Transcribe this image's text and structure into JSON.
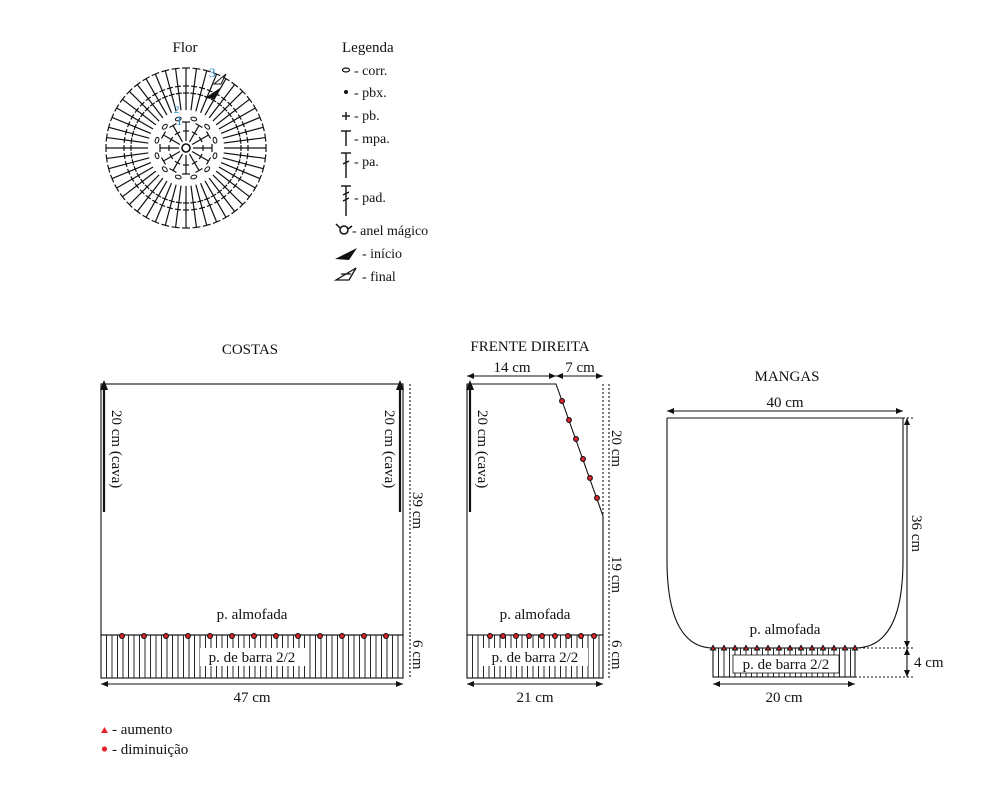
{
  "flower": {
    "title": "Flor",
    "round_labels": [
      "1",
      "2",
      "3"
    ]
  },
  "legend": {
    "title": "Legenda",
    "items": [
      {
        "icon": "chain-stitch-icon",
        "label": "- corr."
      },
      {
        "icon": "slip-stitch-icon",
        "label": "- pbx."
      },
      {
        "icon": "single-crochet-icon",
        "label": "- pb."
      },
      {
        "icon": "half-double-crochet-icon",
        "label": "- mpa."
      },
      {
        "icon": "double-crochet-icon",
        "label": "- pa."
      },
      {
        "icon": "treble-crochet-icon",
        "label": "- pad."
      },
      {
        "icon": "magic-ring-icon",
        "label": "- anel mágico"
      },
      {
        "icon": "start-arrow-icon",
        "label": "- início"
      },
      {
        "icon": "end-arrow-icon",
        "label": "- final"
      }
    ]
  },
  "costas": {
    "title": "COSTAS",
    "armhole_left": "20 cm (cava)",
    "armhole_right": "20 cm (cava)",
    "height": "39 cm",
    "pattern": "p. almofada",
    "rib_label": "p. de barra 2/2",
    "rib_height": "6 cm",
    "width": "47 cm"
  },
  "frente": {
    "title": "FRENTE DIREITA",
    "top_width": "14 cm",
    "neck_width": "7 cm",
    "armhole": "20 cm (cava)",
    "neck_height": "20 cm",
    "lower_height": "19 cm",
    "pattern": "p. almofada",
    "rib_label": "p. de barra 2/2",
    "rib_height": "6 cm",
    "width": "21 cm"
  },
  "mangas": {
    "title": "MANGAS",
    "top_width": "40 cm",
    "height": "36 cm",
    "pattern": "p. almofada",
    "rib_label": "p. de barra 2/2",
    "rib_height": "4 cm",
    "width": "20 cm"
  },
  "key": {
    "increase": "- aumento",
    "decrease": "- diminuição"
  },
  "colors": {
    "line": "#111111",
    "marker": "#e8232b",
    "round_number": "#1f8fd0"
  }
}
